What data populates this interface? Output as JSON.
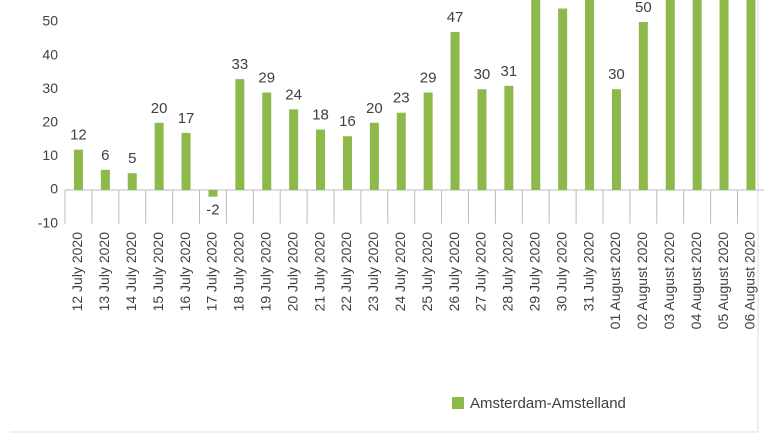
{
  "chart_data": {
    "type": "bar",
    "categories": [
      "12 July 2020",
      "13 July 2020",
      "14 July 2020",
      "15 July 2020",
      "16 July 2020",
      "17 July 2020",
      "18 July 2020",
      "19 July 2020",
      "20 July 2020",
      "21 July 2020",
      "22 July 2020",
      "23 July 2020",
      "24 July 2020",
      "25 July 2020",
      "26 July 2020",
      "27 July 2020",
      "28 July 2020",
      "29 July 2020",
      "30 July 2020",
      "31 July 2020",
      "01 August 2020",
      "02 August 2020",
      "03 August 2020",
      "04 August 2020",
      "05 August 2020",
      "06 August 2020"
    ],
    "series": [
      {
        "name": "Amsterdam-Amstelland",
        "color": "#8db84a",
        "values": [
          12,
          6,
          5,
          20,
          17,
          -2,
          33,
          29,
          24,
          18,
          16,
          20,
          23,
          29,
          47,
          30,
          31,
          60,
          54,
          60,
          30,
          50,
          60,
          60,
          60,
          60
        ]
      }
    ],
    "ylim": [
      -10,
      55
    ],
    "yticks": [
      -10,
      0,
      10,
      20,
      30,
      40,
      50
    ],
    "grid": false,
    "legend": "bottom"
  }
}
